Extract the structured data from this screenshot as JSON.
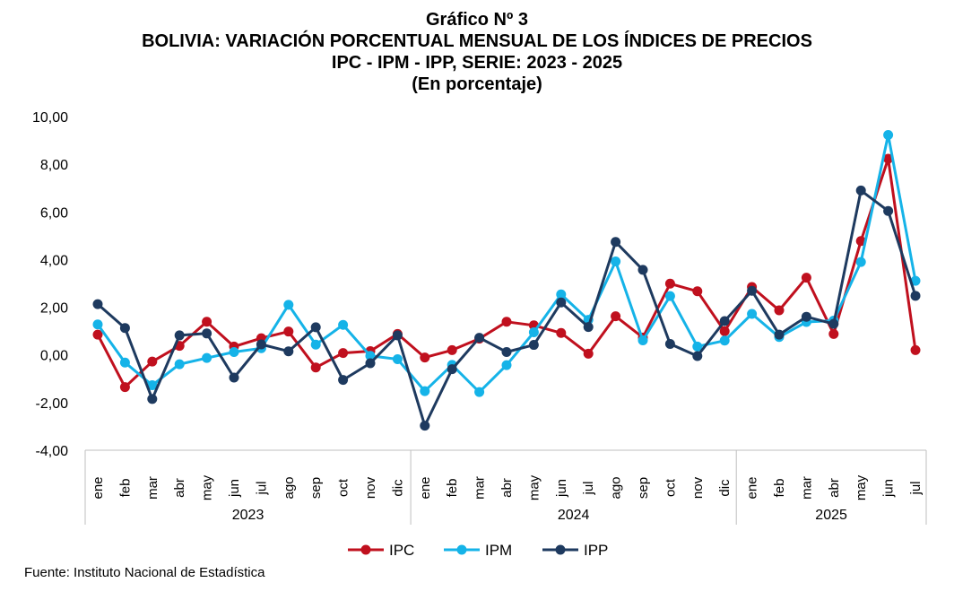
{
  "title_lines": [
    "Gráfico Nº 3",
    "BOLIVIA: VARIACIÓN PORCENTUAL MENSUAL DE LOS ÍNDICES DE PRECIOS",
    "IPC - IPM - IPP, SERIE: 2023 - 2025",
    "(En porcentaje)"
  ],
  "source": "Fuente: Instituto Nacional de Estadística",
  "chart_data": {
    "type": "line",
    "y_ticks": [
      "10,00",
      "8,00",
      "6,00",
      "4,00",
      "2,00",
      "0,00",
      "-2,00",
      "-4,00"
    ],
    "ylim": [
      -4,
      10
    ],
    "categories": [
      "ene",
      "feb",
      "mar",
      "abr",
      "may",
      "jun",
      "jul",
      "ago",
      "sep",
      "oct",
      "nov",
      "dic",
      "ene",
      "feb",
      "mar",
      "abr",
      "may",
      "jun",
      "jul",
      "ago",
      "sep",
      "oct",
      "nov",
      "dic",
      "ene",
      "feb",
      "mar",
      "abr",
      "may",
      "jun",
      "jul"
    ],
    "year_groups": [
      {
        "label": "2023",
        "count": 12
      },
      {
        "label": "2024",
        "count": 12
      },
      {
        "label": "2025",
        "count": 7
      }
    ],
    "grid": false,
    "legend_position": "bottom",
    "series": [
      {
        "name": "IPC",
        "color": "#C0101E",
        "values": [
          0.85,
          -1.35,
          -0.28,
          0.38,
          1.39,
          0.35,
          0.7,
          0.98,
          -0.53,
          0.08,
          0.16,
          0.88,
          -0.11,
          0.2,
          0.68,
          1.39,
          1.24,
          0.92,
          0.05,
          1.62,
          0.73,
          2.99,
          2.67,
          0.99,
          2.85,
          1.87,
          3.24,
          0.88,
          4.78,
          8.23,
          0.2
        ]
      },
      {
        "name": "IPM",
        "color": "#15B3E8",
        "values": [
          1.28,
          -0.32,
          -1.27,
          -0.39,
          -0.13,
          0.12,
          0.28,
          2.1,
          0.43,
          1.26,
          -0.04,
          -0.18,
          -1.52,
          -0.42,
          -1.56,
          -0.43,
          0.95,
          2.54,
          1.47,
          3.92,
          0.61,
          2.47,
          0.35,
          0.6,
          1.72,
          0.75,
          1.38,
          1.44,
          3.9,
          9.23,
          3.11
        ]
      },
      {
        "name": "IPP",
        "color": "#1E3A5F",
        "values": [
          2.13,
          1.13,
          -1.85,
          0.82,
          0.9,
          -0.95,
          0.44,
          0.15,
          1.16,
          -1.05,
          -0.35,
          0.82,
          -2.97,
          -0.6,
          0.72,
          0.12,
          0.42,
          2.2,
          1.17,
          4.74,
          3.57,
          0.46,
          -0.05,
          1.42,
          2.69,
          0.85,
          1.6,
          1.3,
          6.9,
          6.04,
          2.48
        ]
      }
    ]
  }
}
